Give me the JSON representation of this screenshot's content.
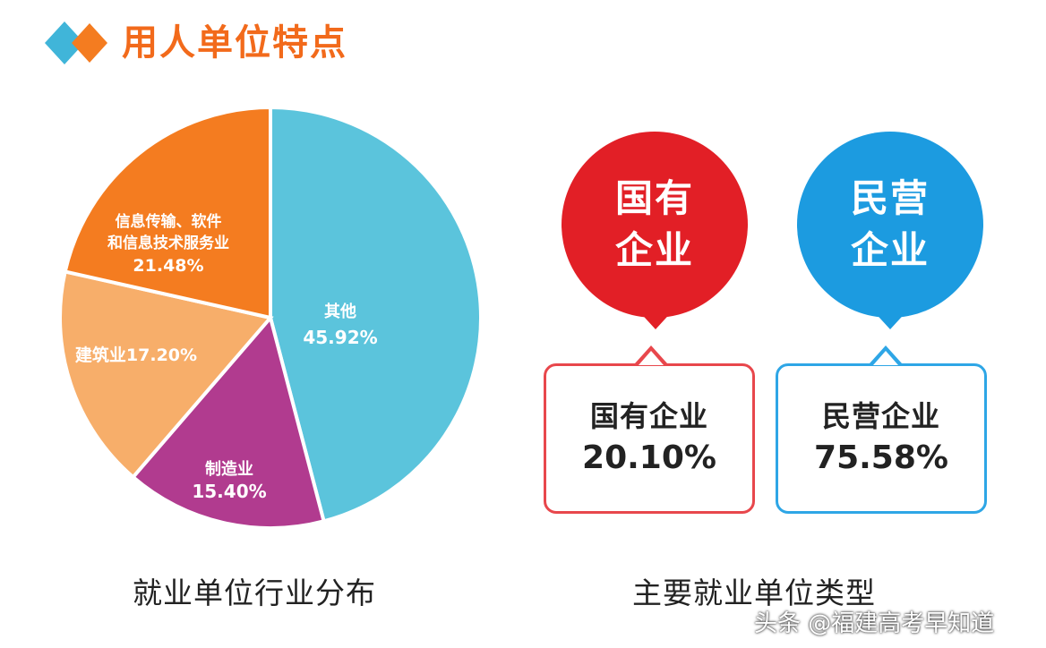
{
  "header": {
    "title": "用人单位特点"
  },
  "chart_data": [
    {
      "type": "pie",
      "title": "",
      "caption": "就业单位行业分布",
      "slices": [
        {
          "name": "其他",
          "value": 45.92,
          "label": "45.92%",
          "color": "#5bc4dc"
        },
        {
          "name": "制造业",
          "value": 15.4,
          "label": "15.40%",
          "color": "#b13b8f"
        },
        {
          "name": "建筑业",
          "value": 17.2,
          "label": "17.20%",
          "color": "#f7ae6a"
        },
        {
          "name": "信息传输、软件和信息技术服务业",
          "value": 21.48,
          "label": "21.48%",
          "color": "#f47c20"
        }
      ]
    },
    {
      "type": "table",
      "caption": "主要就业单位类型",
      "items": [
        {
          "name": "国有企业",
          "value": 20.1,
          "label": "20.10%",
          "color": "#e21f26"
        },
        {
          "name": "民营企业",
          "value": 75.58,
          "label": "75.58%",
          "color": "#1c9be0"
        }
      ]
    }
  ],
  "pie_text": {
    "other_line1": "其他",
    "other_line2": "45.92%",
    "mfg_line1": "制造业",
    "mfg_line2": "15.40%",
    "cons_line1": "建筑业17.20%",
    "it_line1": "信息传输、软件",
    "it_line2": "和信息技术服务业",
    "it_line3": "21.48%"
  },
  "bubbles": {
    "soe_line1": "国有",
    "soe_line2": "企业",
    "pe_line1": "民营",
    "pe_line2": "企业"
  },
  "cards": {
    "soe_label": "国有企业",
    "soe_value": "20.10%",
    "pe_label": "民营企业",
    "pe_value": "75.58%"
  },
  "captions": {
    "left": "就业单位行业分布",
    "right": "主要就业单位类型"
  },
  "watermark": "头条 @福建高考早知道",
  "logo": {
    "icon": "diamond-logo-icon",
    "colors": [
      "#40b5d9",
      "#f47c20"
    ]
  }
}
